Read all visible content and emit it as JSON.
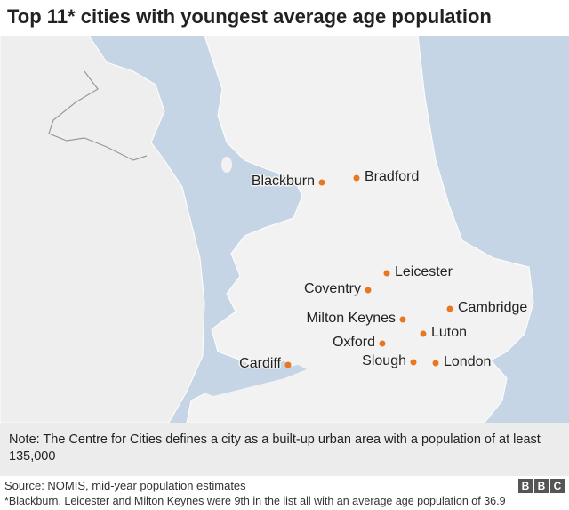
{
  "title": "Top 11* cities with youngest average age population",
  "cities": [
    {
      "name": "Blackburn"
    },
    {
      "name": "Bradford"
    },
    {
      "name": "Leicester"
    },
    {
      "name": "Coventry"
    },
    {
      "name": "Milton Keynes"
    },
    {
      "name": "Cambridge"
    },
    {
      "name": "Oxford"
    },
    {
      "name": "Luton"
    },
    {
      "name": "Cardiff"
    },
    {
      "name": "Slough"
    },
    {
      "name": "London"
    }
  ],
  "note": "Note: The Centre for Cities defines a city as a built-up urban area with a population of at least 135,000",
  "source": "Source: NOMIS, mid-year population estimates",
  "footnote": "*Blackburn, Leicester and Milton Keynes were 9th in the list all with an average age population of 36.9",
  "logo": [
    "B",
    "B",
    "C"
  ]
}
